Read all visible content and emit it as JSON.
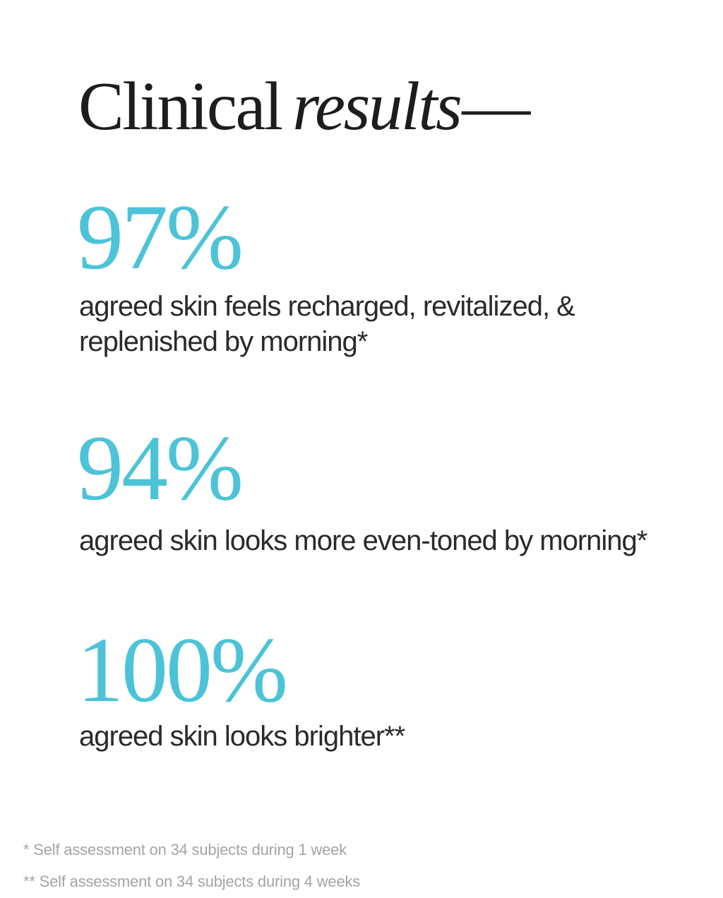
{
  "colors": {
    "background": "#ffffff",
    "accent": "#4cc3d7",
    "heading": "#1d1d1f",
    "body-text": "#2a2a2c",
    "footnote-text": "#a4a4a6"
  },
  "heading": {
    "regular": "Clinical",
    "italic": "results",
    "dash": "—"
  },
  "stats": [
    {
      "value": "97%",
      "lines": [
        "agreed skin feels recharged, revitalized, &",
        "replenished by morning*"
      ]
    },
    {
      "value": "94%",
      "lines": [
        "agreed skin looks more even-toned by morning*"
      ]
    },
    {
      "value": "100%",
      "lines": [
        "agreed skin looks brighter**"
      ]
    }
  ],
  "footnotes": [
    "* Self assessment on 34 subjects during 1 week",
    "** Self assessment on 34 subjects during 4 weeks"
  ]
}
